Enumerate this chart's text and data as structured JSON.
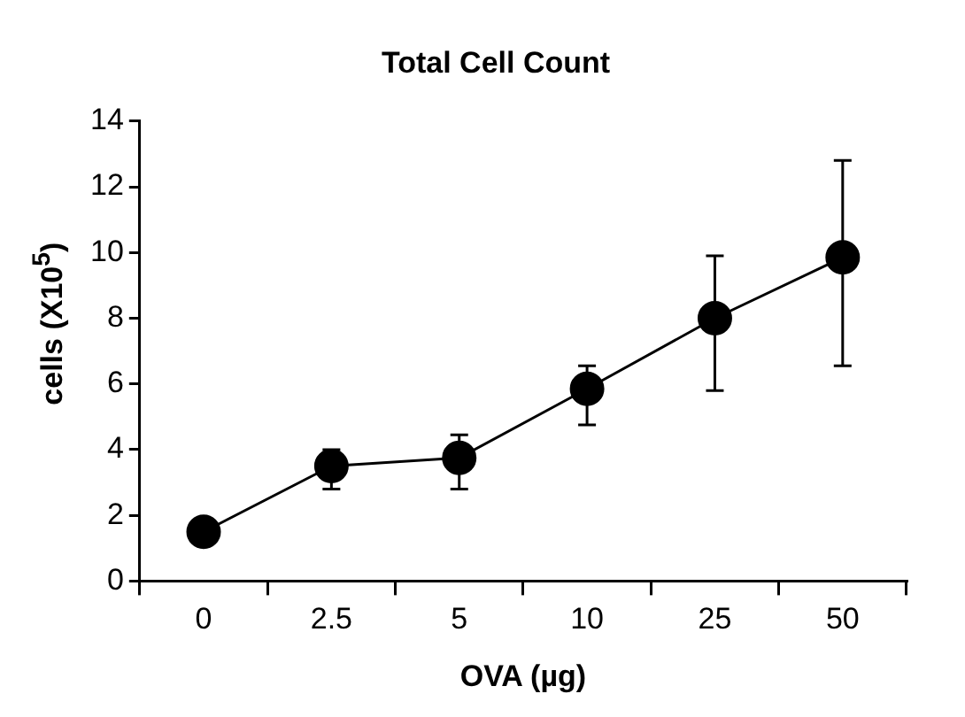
{
  "chart_data": {
    "type": "line",
    "title": "Total Cell Count",
    "xlabel": "OVA (µg)",
    "ylabel": "cells (X10$^{5}$)",
    "categories": [
      "0",
      "2.5",
      "5",
      "10",
      "25",
      "50"
    ],
    "series": [
      {
        "color": "#000000",
        "values": [
          1.5,
          3.5,
          3.75,
          5.85,
          8.0,
          9.85
        ],
        "errors": [
          null,
          [
            2.8,
            4.0
          ],
          [
            2.8,
            4.45
          ],
          [
            4.75,
            6.55
          ],
          [
            5.8,
            9.9
          ],
          [
            6.55,
            12.8
          ]
        ]
      }
    ],
    "ylim": [
      0,
      14
    ],
    "yticks": [
      0,
      2,
      4,
      6,
      8,
      10,
      12,
      14
    ],
    "grid": false,
    "legend": false,
    "marker": "circle",
    "line_style": "solid"
  }
}
